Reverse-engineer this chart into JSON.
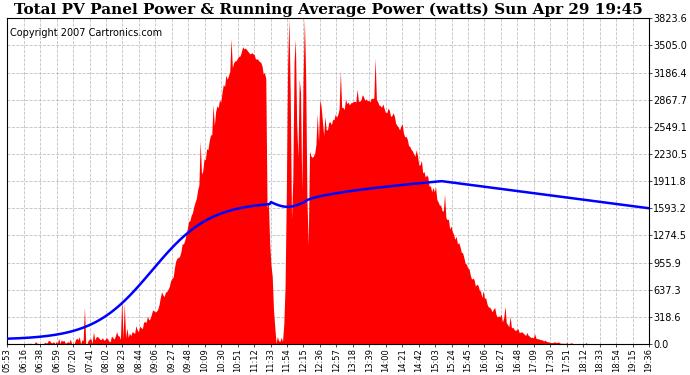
{
  "title": "Total PV Panel Power & Running Average Power (watts) Sun Apr 29 19:45",
  "copyright": "Copyright 2007 Cartronics.com",
  "y_max": 3823.6,
  "y_ticks": [
    0.0,
    318.6,
    637.3,
    955.9,
    1274.5,
    1593.2,
    1911.8,
    2230.5,
    2549.1,
    2867.7,
    3186.4,
    3505.0,
    3823.6
  ],
  "background_color": "#ffffff",
  "fill_color": "#ff0000",
  "line_color": "#0000ff",
  "grid_color": "#bbbbbb",
  "title_fontsize": 11,
  "copyright_fontsize": 7,
  "x_tick_labels": [
    "05:53",
    "06:16",
    "06:38",
    "06:59",
    "07:20",
    "07:41",
    "08:02",
    "08:23",
    "08:44",
    "09:06",
    "09:27",
    "09:48",
    "10:09",
    "10:30",
    "10:51",
    "11:12",
    "11:33",
    "11:54",
    "12:15",
    "12:36",
    "12:57",
    "13:18",
    "13:39",
    "14:00",
    "14:21",
    "14:42",
    "15:03",
    "15:24",
    "15:45",
    "16:06",
    "16:27",
    "16:48",
    "17:09",
    "17:30",
    "17:51",
    "18:12",
    "18:33",
    "18:54",
    "19:15",
    "19:36"
  ]
}
